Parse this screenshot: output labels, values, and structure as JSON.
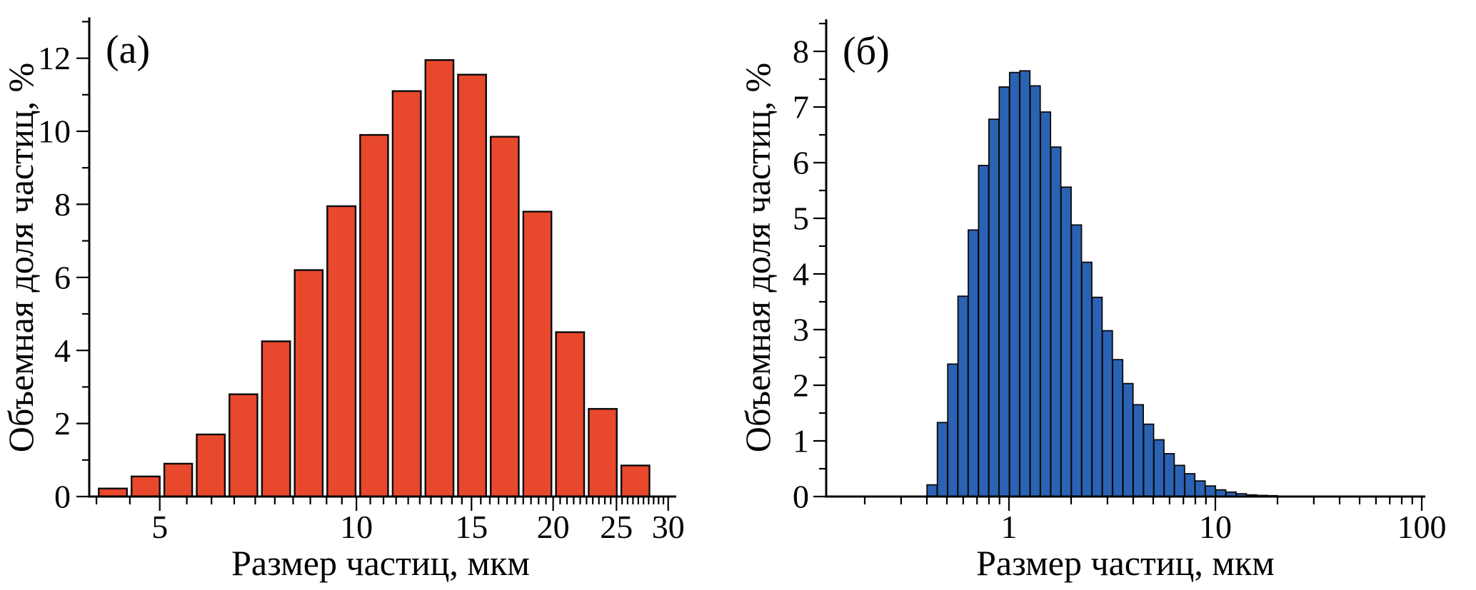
{
  "figure": {
    "background": "#ffffff",
    "text_color": "#000000"
  },
  "chart_data": [
    {
      "id": "a",
      "type": "bar",
      "panel_label": "(a)",
      "xlabel": "Размер частиц, мкм",
      "ylabel": "Объемная доля частиц, %",
      "x_scale": "log",
      "y_scale": "linear",
      "bar_fill": "#E8482C",
      "bar_stroke": "#0a0a0a",
      "x_range": [
        3.9,
        30.4
      ],
      "y_range": [
        0,
        13
      ],
      "x_major_ticks": [
        5,
        10,
        15,
        20,
        25,
        30
      ],
      "x_minor_ticks": [
        4,
        4.5,
        5.5,
        6,
        6.5,
        7,
        7.5,
        8,
        8.5,
        9,
        9.5,
        10.5,
        11,
        11.5,
        12,
        12.5,
        13,
        13.5,
        14,
        14.5,
        15.5,
        16,
        16.5,
        17,
        17.5,
        18,
        18.5,
        19,
        19.5,
        20.5,
        21,
        21.5,
        22,
        22.5,
        23,
        23.5,
        24,
        24.5,
        25.5,
        26,
        26.5,
        27,
        27.5,
        28,
        28.5,
        29,
        29.5
      ],
      "y_major_ticks": [
        0,
        2,
        4,
        6,
        8,
        10,
        12
      ],
      "y_minor_ticks": [
        1,
        3,
        5,
        7,
        9,
        11,
        13
      ],
      "bin_edges": [
        4.0,
        4.49,
        5.04,
        5.65,
        6.34,
        7.11,
        7.98,
        8.95,
        10.05,
        11.27,
        12.65,
        14.19,
        15.92,
        17.86,
        20.04,
        22.49,
        25.23,
        28.31
      ],
      "values": [
        0.22,
        0.55,
        0.9,
        1.7,
        2.8,
        4.25,
        6.2,
        7.95,
        9.9,
        11.1,
        11.95,
        11.55,
        9.85,
        7.8,
        4.5,
        2.4,
        0.85
      ]
    },
    {
      "id": "b",
      "type": "bar",
      "panel_label": "(б)",
      "xlabel": "Размер частиц, мкм",
      "ylabel": "Объемная доля частиц, %",
      "x_scale": "log",
      "y_scale": "linear",
      "bar_fill": "#2B63B4",
      "bar_stroke": "#0a0a0a",
      "x_range": [
        0.13,
        100
      ],
      "y_range": [
        0,
        8.5
      ],
      "x_major_ticks": [
        1,
        10,
        100
      ],
      "x_minor_ticks": [
        0.2,
        0.3,
        0.4,
        0.5,
        0.6,
        0.7,
        0.8,
        0.9,
        2,
        3,
        4,
        5,
        6,
        7,
        8,
        9,
        20,
        30,
        40,
        50,
        60,
        70,
        80,
        90
      ],
      "y_major_ticks": [
        0,
        1,
        2,
        3,
        4,
        5,
        6,
        7,
        8
      ],
      "y_minor_ticks": [
        0.5,
        1.5,
        2.5,
        3.5,
        4.5,
        5.5,
        6.5,
        7.5,
        8.5
      ],
      "bin_edges": [
        0.4,
        0.449,
        0.504,
        0.565,
        0.634,
        0.711,
        0.798,
        0.895,
        1.005,
        1.127,
        1.265,
        1.419,
        1.592,
        1.786,
        2.004,
        2.249,
        2.523,
        2.831,
        3.175,
        3.562,
        3.996,
        4.483,
        5.03,
        5.642,
        6.33,
        7.101,
        7.966,
        8.937,
        10.026,
        11.248,
        12.619,
        14.156,
        15.881,
        17.816,
        19.987
      ],
      "values": [
        0.21,
        1.33,
        2.38,
        3.6,
        4.79,
        5.95,
        6.78,
        7.36,
        7.62,
        7.65,
        7.38,
        6.91,
        6.28,
        5.56,
        4.88,
        4.21,
        3.58,
        2.98,
        2.46,
        2.03,
        1.65,
        1.3,
        1.02,
        0.77,
        0.56,
        0.41,
        0.28,
        0.19,
        0.12,
        0.08,
        0.05,
        0.03,
        0.02,
        0.01
      ]
    }
  ]
}
